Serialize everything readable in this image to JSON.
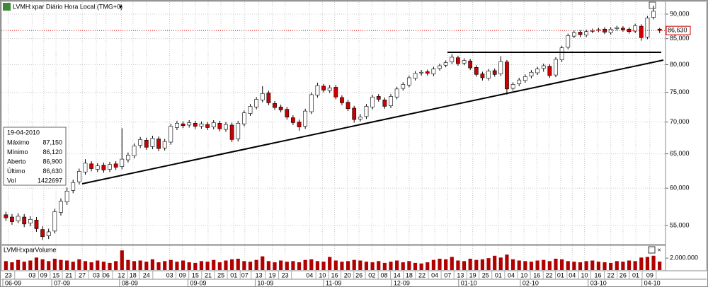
{
  "chart_data": {
    "type": "candlestick",
    "title": "LVMH:xpar Diário Hora Local (TMG+0)",
    "log_y": true,
    "grid": true,
    "up_color": "#ffffff",
    "down_color": "#cc0000",
    "wick_color": "#000000",
    "xlim": [
      -0.5,
      107.5
    ],
    "ylim": [
      52700,
      92550
    ],
    "yticks": [
      {
        "value": 90000,
        "label": "90,000"
      },
      {
        "value": 85000,
        "label": "85,000"
      },
      {
        "value": 80000,
        "label": "80,000"
      },
      {
        "value": 75000,
        "label": "75,000"
      },
      {
        "value": 70000,
        "label": "70,000"
      },
      {
        "value": 65000,
        "label": "65,000"
      },
      {
        "value": 60000,
        "label": "60,000"
      },
      {
        "value": 55000,
        "label": "55,000"
      }
    ],
    "xticks": [
      {
        "value": 0.4,
        "label": "23"
      },
      {
        "value": 4.3,
        "label": "03"
      },
      {
        "value": 6.2,
        "label": "09"
      },
      {
        "value": 8.2,
        "label": "15"
      },
      {
        "value": 10.3,
        "label": "21"
      },
      {
        "value": 12.5,
        "label": "27"
      },
      {
        "value": 14.8,
        "label": "03"
      },
      {
        "value": 16.4,
        "label": "06"
      },
      {
        "value": 18.9,
        "label": "12"
      },
      {
        "value": 20.8,
        "label": "18"
      },
      {
        "value": 23.0,
        "label": "24"
      },
      {
        "value": 26.8,
        "label": "03"
      },
      {
        "value": 28.9,
        "label": "09"
      },
      {
        "value": 31.0,
        "label": "15"
      },
      {
        "value": 33.1,
        "label": "21"
      },
      {
        "value": 35.2,
        "label": "25"
      },
      {
        "value": 37.3,
        "label": "01"
      },
      {
        "value": 39.1,
        "label": "07"
      },
      {
        "value": 41.4,
        "label": "13"
      },
      {
        "value": 43.6,
        "label": "19"
      },
      {
        "value": 45.7,
        "label": "23"
      },
      {
        "value": 49.7,
        "label": "04"
      },
      {
        "value": 51.8,
        "label": "10"
      },
      {
        "value": 53.8,
        "label": "16"
      },
      {
        "value": 55.9,
        "label": "20"
      },
      {
        "value": 57.8,
        "label": "26"
      },
      {
        "value": 59.9,
        "label": "02"
      },
      {
        "value": 61.9,
        "label": "08"
      },
      {
        "value": 64.0,
        "label": "14"
      },
      {
        "value": 66.0,
        "label": "18"
      },
      {
        "value": 68.1,
        "label": "22"
      },
      {
        "value": 70.2,
        "label": "04"
      },
      {
        "value": 72.3,
        "label": "07"
      },
      {
        "value": 74.4,
        "label": "13"
      },
      {
        "value": 76.4,
        "label": "19"
      },
      {
        "value": 78.5,
        "label": "25"
      },
      {
        "value": 80.6,
        "label": "01"
      },
      {
        "value": 82.7,
        "label": "04"
      },
      {
        "value": 84.8,
        "label": "10"
      },
      {
        "value": 86.9,
        "label": "16"
      },
      {
        "value": 88.9,
        "label": "22"
      },
      {
        "value": 90.8,
        "label": "01"
      },
      {
        "value": 92.7,
        "label": "04"
      },
      {
        "value": 94.7,
        "label": "10"
      },
      {
        "value": 96.9,
        "label": "16"
      },
      {
        "value": 99.0,
        "label": "22"
      },
      {
        "value": 101.0,
        "label": "26"
      },
      {
        "value": 103.1,
        "label": "01"
      },
      {
        "value": 105.4,
        "label": "09"
      }
    ],
    "month_ticks": [
      {
        "value": -0.5,
        "label": "06-09"
      },
      {
        "value": 7.5,
        "label": "07-09"
      },
      {
        "value": 18.6,
        "label": "08-09"
      },
      {
        "value": 29.8,
        "label": "09-09"
      },
      {
        "value": 40.8,
        "label": "10-09"
      },
      {
        "value": 52.0,
        "label": "11-09"
      },
      {
        "value": 63.1,
        "label": "12-09"
      },
      {
        "value": 74.1,
        "label": "01-10"
      },
      {
        "value": 84.2,
        "label": "02-10"
      },
      {
        "value": 95.3,
        "label": "03-10"
      },
      {
        "value": 104.1,
        "label": "04-10"
      }
    ],
    "open": [
      56400,
      56100,
      55600,
      56100,
      55300,
      55700,
      54500,
      53700,
      54300,
      56700,
      58100,
      59700,
      60900,
      62300,
      63500,
      62700,
      63300,
      62700,
      63500,
      63100,
      64100,
      64700,
      66300,
      67100,
      66100,
      67300,
      65900,
      66800,
      69100,
      69700,
      69500,
      69800,
      69300,
      69600,
      69200,
      69800,
      68800,
      69500,
      67300,
      69700,
      71400,
      72500,
      73700,
      74900,
      73100,
      72500,
      72100,
      70700,
      70000,
      69300,
      71700,
      74500,
      76100,
      75300,
      75900,
      74100,
      73300,
      72300,
      70500,
      70900,
      72500,
      74300,
      73700,
      72700,
      74200,
      75700,
      76300,
      77500,
      78500,
      78700,
      78300,
      79300,
      79900,
      80500,
      81300,
      80300,
      80700,
      79500,
      78300,
      77500,
      78900,
      78300,
      80500,
      75700,
      76500,
      77100,
      77900,
      78500,
      79300,
      79700,
      78100,
      80900,
      83300,
      85500,
      86300,
      85700,
      86500,
      86700,
      86900,
      86200,
      87000,
      87100,
      86900,
      86500,
      87500,
      85300,
      89300,
      86900
    ],
    "high": [
      56800,
      56500,
      56600,
      56500,
      56200,
      56100,
      54900,
      54600,
      57200,
      58600,
      60100,
      61200,
      62800,
      64200,
      63900,
      63600,
      63700,
      63800,
      63900,
      69000,
      65200,
      66600,
      67600,
      67500,
      67800,
      67700,
      67300,
      69700,
      70200,
      70100,
      70300,
      70200,
      70100,
      70000,
      70300,
      70200,
      70000,
      69900,
      70200,
      71900,
      73000,
      74200,
      76100,
      75300,
      73500,
      72900,
      72500,
      71100,
      70400,
      72200,
      75000,
      76700,
      76500,
      76300,
      76300,
      74500,
      73700,
      72700,
      71300,
      73000,
      74600,
      74700,
      74100,
      74700,
      76000,
      76800,
      78000,
      78800,
      79000,
      79100,
      79600,
      80200,
      80800,
      82000,
      81700,
      81200,
      81100,
      79900,
      78700,
      79200,
      79300,
      81600,
      80900,
      76800,
      77600,
      78200,
      79000,
      79600,
      80200,
      80100,
      81400,
      83600,
      86000,
      86600,
      86700,
      86800,
      87000,
      87200,
      87300,
      87300,
      87600,
      87500,
      87300,
      88000,
      87900,
      89600,
      91800,
      87150
    ],
    "low": [
      55600,
      55100,
      55300,
      54800,
      54900,
      54200,
      53200,
      53300,
      54000,
      56300,
      57700,
      59300,
      60500,
      61900,
      62400,
      62300,
      62200,
      62300,
      62600,
      62700,
      63700,
      64300,
      65900,
      65600,
      65700,
      65400,
      65500,
      66400,
      68700,
      69000,
      69100,
      68900,
      68900,
      68700,
      68800,
      68500,
      68400,
      66800,
      66900,
      69300,
      71000,
      72100,
      73300,
      72800,
      72000,
      71600,
      70400,
      69500,
      68600,
      68900,
      71300,
      74100,
      75000,
      74900,
      73800,
      72800,
      71800,
      69900,
      70100,
      70500,
      72100,
      73400,
      72200,
      72300,
      73800,
      75300,
      75900,
      77100,
      78000,
      78000,
      77900,
      78900,
      79500,
      80100,
      79800,
      79900,
      79000,
      77800,
      77100,
      77100,
      77800,
      77900,
      74600,
      75300,
      76100,
      76700,
      77500,
      78100,
      78700,
      77600,
      77700,
      80500,
      82900,
      85100,
      85300,
      85300,
      86100,
      86300,
      85900,
      85800,
      86600,
      86400,
      86000,
      86100,
      84600,
      84900,
      88900,
      86120
    ],
    "close": [
      56000,
      55500,
      56200,
      55200,
      55800,
      54600,
      53600,
      54200,
      56800,
      58200,
      59600,
      60800,
      62400,
      63600,
      62800,
      63200,
      62600,
      63400,
      63000,
      64200,
      64800,
      66200,
      67200,
      66000,
      67400,
      65800,
      66900,
      69300,
      69800,
      69400,
      69900,
      69300,
      69700,
      69100,
      69900,
      68900,
      69600,
      67200,
      69800,
      71500,
      72600,
      73800,
      74800,
      73200,
      72400,
      72000,
      70800,
      69900,
      69200,
      71800,
      74600,
      76200,
      75400,
      75800,
      74200,
      73200,
      72200,
      70400,
      70800,
      72600,
      74200,
      73800,
      72600,
      74300,
      75600,
      76400,
      77600,
      78400,
      78600,
      78400,
      79200,
      79800,
      80400,
      81400,
      80200,
      80800,
      79400,
      78200,
      77600,
      78800,
      78200,
      80600,
      75600,
      76400,
      77200,
      77800,
      78600,
      79200,
      79800,
      78000,
      81000,
      83200,
      85600,
      86200,
      85800,
      86400,
      86600,
      86800,
      86300,
      86900,
      87200,
      86800,
      86400,
      87600,
      85200,
      89200,
      90600,
      86630
    ],
    "last_price": {
      "value": 86630,
      "label": "86,630"
    },
    "info_box": {
      "date": "19-04-2010",
      "rows": [
        {
          "label": "Máximo",
          "value": "87,150"
        },
        {
          "label": "Mínimo",
          "value": "86,120"
        },
        {
          "label": "Aberto",
          "value": "86,900"
        },
        {
          "label": "Último",
          "value": "86,630"
        },
        {
          "label": "Vol",
          "value": "1422697"
        }
      ]
    },
    "volume": {
      "title": "LVMH:xparVolume",
      "color": "#b00000",
      "ylim": [
        0,
        3800000
      ],
      "yticks": [
        {
          "value": 2000000,
          "label": "2.000.000"
        }
      ],
      "values": [
        1500000,
        1300000,
        1700000,
        1400000,
        1600000,
        2100000,
        1800000,
        1500000,
        1900000,
        1700000,
        1600000,
        1400000,
        1800000,
        1500000,
        1300000,
        1600000,
        1400000,
        1200000,
        1500000,
        3300000,
        1700000,
        1500000,
        1600000,
        1400000,
        1800000,
        1300000,
        1500000,
        1700000,
        1400000,
        1600000,
        1300000,
        1200000,
        1500000,
        1400000,
        1700000,
        1300000,
        1600000,
        1800000,
        1900000,
        1500000,
        1400000,
        1700000,
        2300000,
        1500000,
        1300000,
        1600000,
        1400000,
        1500000,
        1300000,
        1700000,
        1800000,
        1500000,
        1400000,
        2200000,
        1600000,
        1400000,
        1500000,
        1700000,
        1600000,
        1400000,
        1300000,
        1500000,
        1200000,
        1400000,
        1600000,
        1300000,
        1500000,
        1200000,
        1100000,
        1300000,
        1700000,
        1900000,
        1800000,
        2200000,
        1600000,
        1500000,
        1900000,
        1700000,
        1800000,
        2000000,
        2400000,
        2100000,
        2600000,
        1800000,
        1600000,
        1500000,
        1400000,
        1600000,
        1700000,
        1500000,
        1900000,
        1800000,
        1500000,
        1400000,
        1300000,
        1500000,
        1600000,
        1400000,
        1300000,
        1200000,
        1500000,
        1400000,
        1600000,
        1500000,
        2100000,
        2200000,
        2400000,
        1422697
      ]
    }
  }
}
